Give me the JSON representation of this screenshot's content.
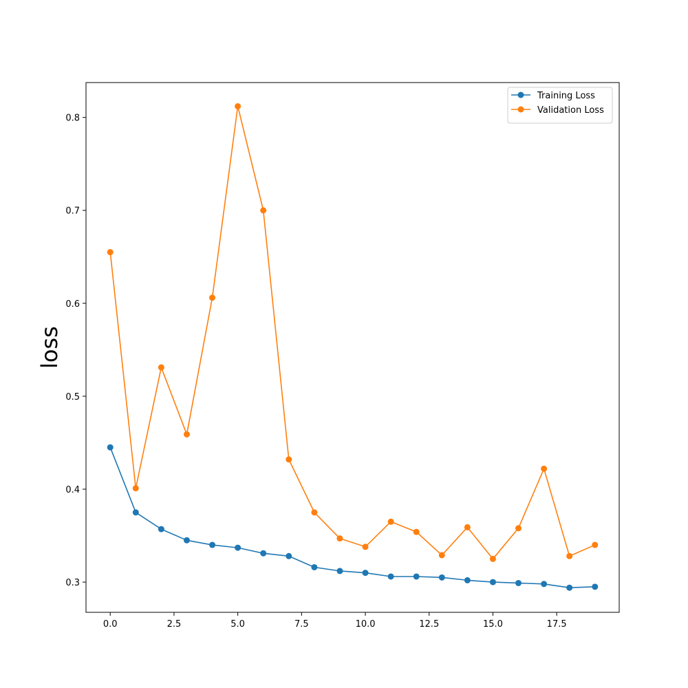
{
  "chart_data": {
    "type": "line",
    "title": "",
    "xlabel": "",
    "ylabel": "loss",
    "xlim": [
      -0.95,
      19.95
    ],
    "ylim": [
      0.2675,
      0.8375
    ],
    "xticks": [
      {
        "value": 0,
        "label": "0.0"
      },
      {
        "value": 2.5,
        "label": "2.5"
      },
      {
        "value": 5,
        "label": "5.0"
      },
      {
        "value": 7.5,
        "label": "7.5"
      },
      {
        "value": 10,
        "label": "10.0"
      },
      {
        "value": 12.5,
        "label": "12.5"
      },
      {
        "value": 15,
        "label": "15.0"
      },
      {
        "value": 17.5,
        "label": "17.5"
      }
    ],
    "yticks": [
      {
        "value": 0.3,
        "label": "0.3"
      },
      {
        "value": 0.4,
        "label": "0.4"
      },
      {
        "value": 0.5,
        "label": "0.5"
      },
      {
        "value": 0.6,
        "label": "0.6"
      },
      {
        "value": 0.7,
        "label": "0.7"
      },
      {
        "value": 0.8,
        "label": "0.8"
      }
    ],
    "grid": false,
    "legend_position": "top-right",
    "x": [
      0,
      1,
      2,
      3,
      4,
      5,
      6,
      7,
      8,
      9,
      10,
      11,
      12,
      13,
      14,
      15,
      16,
      17,
      18,
      19
    ],
    "series": [
      {
        "name": "Training Loss",
        "color": "#1f77b4",
        "marker": "circle",
        "values": [
          0.445,
          0.375,
          0.357,
          0.345,
          0.34,
          0.337,
          0.331,
          0.328,
          0.316,
          0.312,
          0.31,
          0.306,
          0.306,
          0.305,
          0.302,
          0.3,
          0.299,
          0.298,
          0.294,
          0.295
        ]
      },
      {
        "name": "Validation Loss",
        "color": "#ff7f0e",
        "marker": "circle",
        "values": [
          0.655,
          0.401,
          0.531,
          0.459,
          0.606,
          0.812,
          0.7,
          0.432,
          0.375,
          0.347,
          0.338,
          0.365,
          0.354,
          0.329,
          0.359,
          0.325,
          0.358,
          0.422,
          0.328,
          0.34
        ]
      }
    ]
  }
}
